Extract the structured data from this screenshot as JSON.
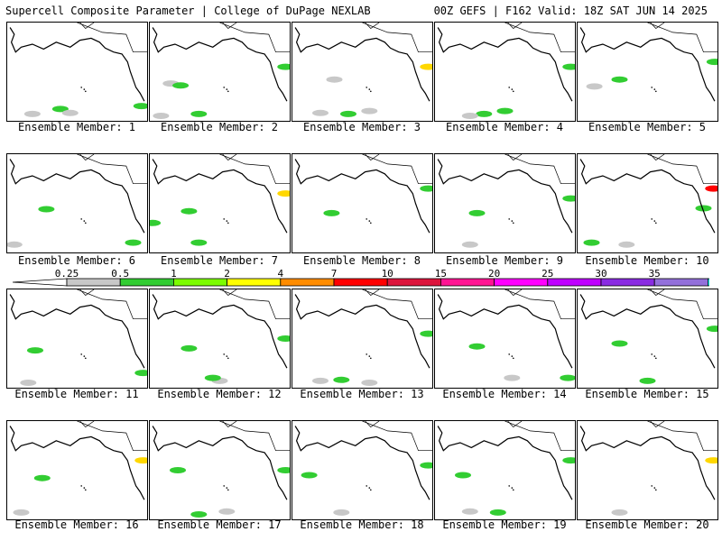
{
  "header": {
    "left": "Supercell Composite Parameter | College of DuPage NEXLAB",
    "right": "00Z GEFS | F162 Valid: 18Z SAT JUN 14 2025"
  },
  "member_label_prefix": "Ensemble Member: ",
  "members": [
    {
      "id": "1",
      "blobs": [
        [
          0.18,
          0.93,
          "#c8c8c8"
        ],
        [
          0.38,
          0.88,
          "#32cd32"
        ],
        [
          0.45,
          0.92,
          "#c8c8c8"
        ],
        [
          0.96,
          0.85,
          "#32cd32"
        ]
      ]
    },
    {
      "id": "2",
      "blobs": [
        [
          0.15,
          0.62,
          "#c8c8c8"
        ],
        [
          0.22,
          0.64,
          "#32cd32"
        ],
        [
          0.08,
          0.95,
          "#c8c8c8"
        ],
        [
          0.35,
          0.93,
          "#32cd32"
        ],
        [
          0.97,
          0.45,
          "#32cd32"
        ]
      ]
    },
    {
      "id": "3",
      "blobs": [
        [
          0.3,
          0.58,
          "#c8c8c8"
        ],
        [
          0.2,
          0.92,
          "#c8c8c8"
        ],
        [
          0.4,
          0.93,
          "#32cd32"
        ],
        [
          0.55,
          0.9,
          "#c8c8c8"
        ],
        [
          0.97,
          0.45,
          "#ffd700"
        ]
      ]
    },
    {
      "id": "4",
      "blobs": [
        [
          0.35,
          0.93,
          "#32cd32"
        ],
        [
          0.5,
          0.9,
          "#32cd32"
        ],
        [
          0.25,
          0.95,
          "#c8c8c8"
        ],
        [
          0.97,
          0.45,
          "#32cd32"
        ]
      ]
    },
    {
      "id": "5",
      "blobs": [
        [
          0.3,
          0.58,
          "#32cd32"
        ],
        [
          0.12,
          0.65,
          "#c8c8c8"
        ],
        [
          0.98,
          0.4,
          "#32cd32"
        ]
      ]
    },
    {
      "id": "6",
      "blobs": [
        [
          0.28,
          0.56,
          "#32cd32"
        ],
        [
          0.05,
          0.92,
          "#c8c8c8"
        ],
        [
          0.9,
          0.9,
          "#32cd32"
        ]
      ]
    },
    {
      "id": "7",
      "blobs": [
        [
          0.28,
          0.58,
          "#32cd32"
        ],
        [
          0.35,
          0.9,
          "#32cd32"
        ],
        [
          0.02,
          0.7,
          "#32cd32"
        ],
        [
          0.97,
          0.4,
          "#ffd700"
        ]
      ]
    },
    {
      "id": "8",
      "blobs": [
        [
          0.28,
          0.6,
          "#32cd32"
        ],
        [
          0.97,
          0.35,
          "#32cd32"
        ]
      ]
    },
    {
      "id": "9",
      "blobs": [
        [
          0.25,
          0.92,
          "#c8c8c8"
        ],
        [
          0.3,
          0.6,
          "#32cd32"
        ],
        [
          0.97,
          0.45,
          "#32cd32"
        ]
      ]
    },
    {
      "id": "10",
      "blobs": [
        [
          0.1,
          0.9,
          "#32cd32"
        ],
        [
          0.35,
          0.92,
          "#c8c8c8"
        ],
        [
          0.97,
          0.35,
          "#ff0000"
        ],
        [
          0.9,
          0.55,
          "#32cd32"
        ]
      ]
    },
    {
      "id": "11",
      "blobs": [
        [
          0.2,
          0.62,
          "#32cd32"
        ],
        [
          0.15,
          0.95,
          "#c8c8c8"
        ],
        [
          0.97,
          0.85,
          "#32cd32"
        ]
      ]
    },
    {
      "id": "12",
      "blobs": [
        [
          0.28,
          0.6,
          "#32cd32"
        ],
        [
          0.5,
          0.93,
          "#c8c8c8"
        ],
        [
          0.45,
          0.9,
          "#32cd32"
        ],
        [
          0.97,
          0.5,
          "#32cd32"
        ]
      ]
    },
    {
      "id": "13",
      "blobs": [
        [
          0.2,
          0.93,
          "#c8c8c8"
        ],
        [
          0.35,
          0.92,
          "#32cd32"
        ],
        [
          0.55,
          0.95,
          "#c8c8c8"
        ],
        [
          0.97,
          0.45,
          "#32cd32"
        ]
      ]
    },
    {
      "id": "14",
      "blobs": [
        [
          0.3,
          0.58,
          "#32cd32"
        ],
        [
          0.55,
          0.9,
          "#c8c8c8"
        ],
        [
          0.95,
          0.9,
          "#32cd32"
        ]
      ]
    },
    {
      "id": "15",
      "blobs": [
        [
          0.3,
          0.55,
          "#32cd32"
        ],
        [
          0.5,
          0.93,
          "#32cd32"
        ],
        [
          0.98,
          0.4,
          "#32cd32"
        ]
      ]
    },
    {
      "id": "16",
      "blobs": [
        [
          0.25,
          0.58,
          "#32cd32"
        ],
        [
          0.1,
          0.93,
          "#c8c8c8"
        ],
        [
          0.97,
          0.4,
          "#ffd700"
        ]
      ]
    },
    {
      "id": "17",
      "blobs": [
        [
          0.35,
          0.95,
          "#32cd32"
        ],
        [
          0.55,
          0.92,
          "#c8c8c8"
        ],
        [
          0.2,
          0.5,
          "#32cd32"
        ],
        [
          0.97,
          0.5,
          "#32cd32"
        ]
      ]
    },
    {
      "id": "18",
      "blobs": [
        [
          0.12,
          0.55,
          "#32cd32"
        ],
        [
          0.35,
          0.93,
          "#c8c8c8"
        ],
        [
          0.97,
          0.45,
          "#32cd32"
        ]
      ]
    },
    {
      "id": "19",
      "blobs": [
        [
          0.2,
          0.55,
          "#32cd32"
        ],
        [
          0.45,
          0.93,
          "#32cd32"
        ],
        [
          0.25,
          0.92,
          "#c8c8c8"
        ],
        [
          0.97,
          0.4,
          "#32cd32"
        ]
      ]
    },
    {
      "id": "20",
      "blobs": [
        [
          0.3,
          0.93,
          "#c8c8c8"
        ],
        [
          0.97,
          0.4,
          "#ffd700"
        ]
      ]
    }
  ],
  "colorbar": {
    "labels": [
      "0.25",
      "0.5",
      "1",
      "2",
      "4",
      "7",
      "10",
      "15",
      "20",
      "25",
      "30",
      "35"
    ],
    "colors": [
      "#c8c8c8",
      "#32cd32",
      "#7cfc00",
      "#ffff00",
      "#ff8c00",
      "#ff0000",
      "#dc143c",
      "#ff1493",
      "#ff00ff",
      "#bf00ff",
      "#8a2be2",
      "#9370db",
      "#00ffff"
    ]
  }
}
